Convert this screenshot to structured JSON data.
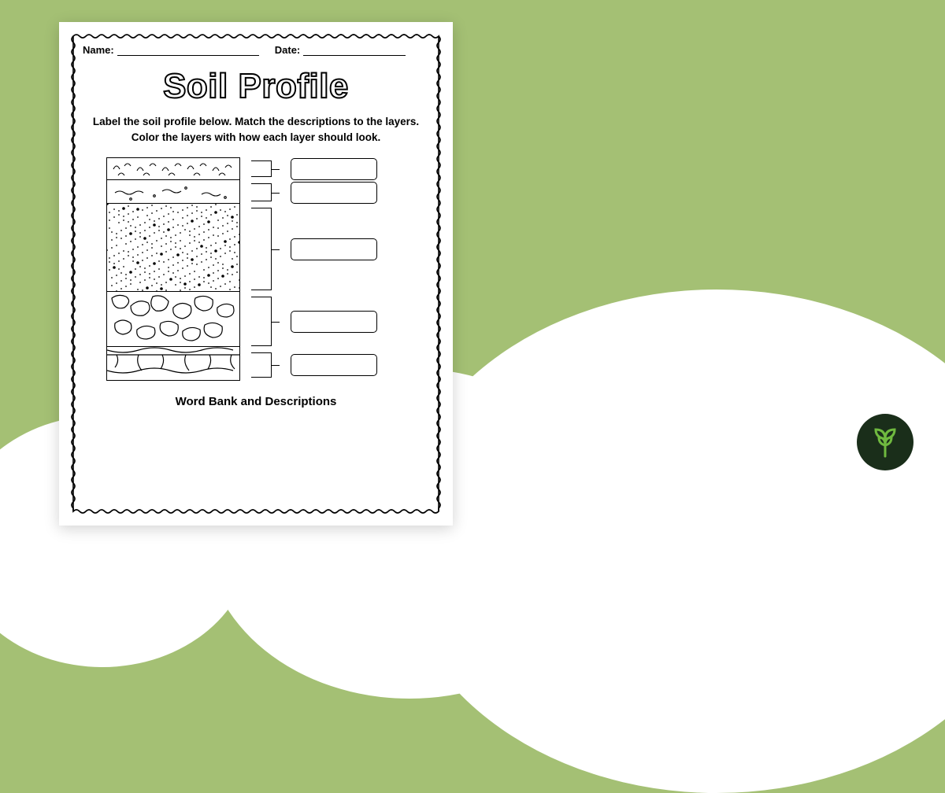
{
  "background": {
    "sky_color": "#a4c074",
    "cloud_color": "#ffffff"
  },
  "worksheet": {
    "name_label": "Name:",
    "date_label": "Date:",
    "title": "Soil Profile",
    "instructions_line1": "Label the soil profile below. Match the descriptions to the layers.",
    "instructions_line2": "Color the layers with how each layer should look.",
    "footer_heading": "Word Bank and Descriptions",
    "layers": [
      {
        "id": "humus",
        "height": 28,
        "pattern": "leaves"
      },
      {
        "id": "topsoil",
        "height": 30,
        "pattern": "worms"
      },
      {
        "id": "subsoil",
        "height": 112,
        "pattern": "dots"
      },
      {
        "id": "parent",
        "height": 70,
        "pattern": "rocks"
      },
      {
        "id": "bedrock",
        "height": 40,
        "pattern": "cracks"
      }
    ],
    "border_color": "#000000",
    "text_color": "#000000"
  },
  "logo": {
    "bg_color": "#1a2e1a",
    "leaf_color": "#6fb93f"
  }
}
